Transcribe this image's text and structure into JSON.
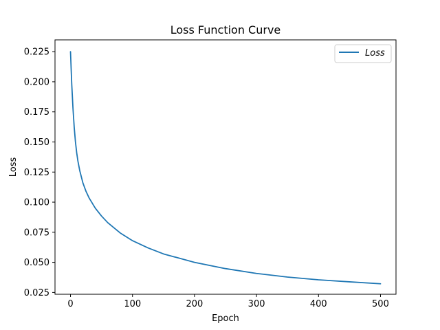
{
  "chart_data": {
    "type": "line",
    "title": "Loss Function Curve",
    "xlabel": "Epoch",
    "ylabel": "Loss",
    "xlim": [
      -25,
      525
    ],
    "ylim": [
      0.0235,
      0.2348
    ],
    "xticks": [
      0,
      100,
      200,
      300,
      400,
      500
    ],
    "xtick_labels": [
      "0",
      "100",
      "200",
      "300",
      "400",
      "500"
    ],
    "yticks": [
      0.025,
      0.05,
      0.075,
      0.1,
      0.125,
      0.15,
      0.175,
      0.2,
      0.225
    ],
    "ytick_labels": [
      "0.025",
      "0.050",
      "0.075",
      "0.100",
      "0.125",
      "0.150",
      "0.175",
      "0.200",
      "0.225"
    ],
    "grid": false,
    "legend_position": "top-right",
    "series": [
      {
        "name": "Loss",
        "color": "#1f77b4",
        "x": [
          0,
          2,
          4,
          6,
          8,
          10,
          12,
          15,
          20,
          25,
          30,
          40,
          50,
          60,
          80,
          100,
          125,
          150,
          200,
          250,
          300,
          350,
          400,
          450,
          500
        ],
        "y": [
          0.225,
          0.198,
          0.178,
          0.162,
          0.15,
          0.141,
          0.134,
          0.126,
          0.116,
          0.109,
          0.1035,
          0.095,
          0.0885,
          0.083,
          0.0745,
          0.068,
          0.062,
          0.057,
          0.05,
          0.0448,
          0.0408,
          0.0378,
          0.0355,
          0.0338,
          0.0322
        ]
      }
    ]
  }
}
